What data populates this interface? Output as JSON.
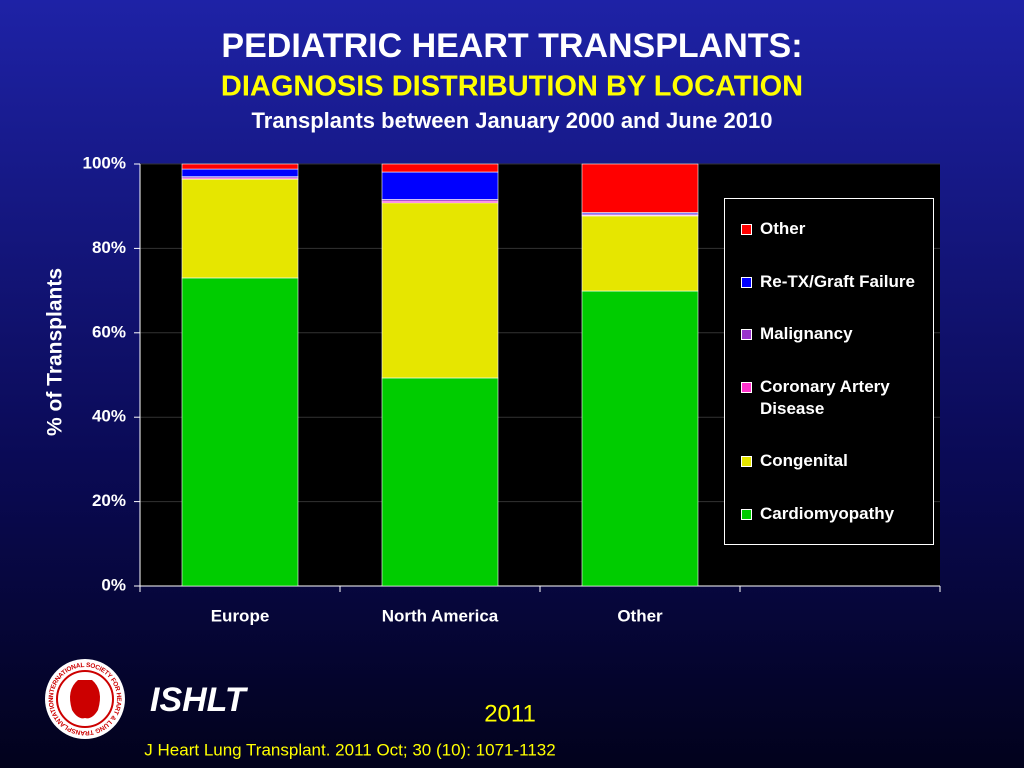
{
  "chart_data": {
    "type": "stacked_bar",
    "title": "PEDIATRIC HEART TRANSPLANTS:",
    "subtitle": "DIAGNOSIS DISTRIBUTION BY LOCATION",
    "subtitle2": "Transplants between January 2000 and June 2010",
    "y_label": "% of Transplants",
    "categories": [
      "Europe",
      "North America",
      "Other",
      null
    ],
    "series": [
      {
        "name": "Cardiomyopathy",
        "color": "#00cc00",
        "values": [
          73,
          49.3,
          69.9,
          null
        ]
      },
      {
        "name": "Congenital",
        "color": "#e6e600",
        "values": [
          23.4,
          41.5,
          17.8,
          null
        ]
      },
      {
        "name": "Coronary Artery Disease",
        "color": "#ff33cc",
        "values": [
          0.3,
          0.4,
          0.2,
          null
        ]
      },
      {
        "name": "Malignancy",
        "color": "#9933cc",
        "values": [
          0.3,
          0.4,
          0.3,
          null
        ]
      },
      {
        "name": "Re-TX/Graft Failure",
        "color": "#0000ff",
        "values": [
          1.8,
          6.5,
          0.3,
          null
        ]
      },
      {
        "name": "Other",
        "color": "#ff0000",
        "values": [
          1.2,
          1.9,
          11.5,
          null
        ]
      }
    ],
    "ylim": [
      0,
      100
    ],
    "yticks": [
      {
        "value": 0,
        "label": "0%"
      },
      {
        "value": 20,
        "label": "20%"
      },
      {
        "value": 40,
        "label": "40%"
      },
      {
        "value": 60,
        "label": "60%"
      },
      {
        "value": 80,
        "label": "80%"
      },
      {
        "value": 100,
        "label": "100%"
      }
    ],
    "grid": true
  },
  "footer": {
    "logo_text": "INTERNATIONAL SOCIETY FOR HEART & LUNG TRANSPLANTATION",
    "brand": "ISHLT",
    "year": "2011",
    "citation": "J Heart Lung Transplant. 2011 Oct; 30 (10): 1071-1132"
  }
}
